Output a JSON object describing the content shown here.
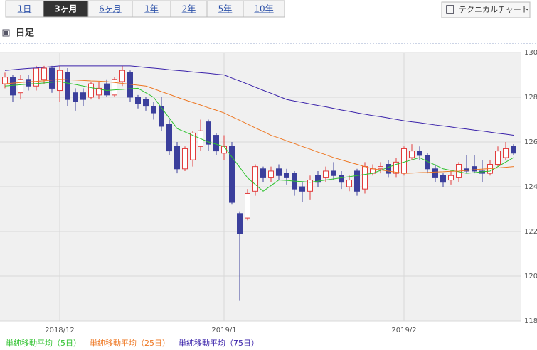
{
  "tabs": [
    "1日",
    "3ヶ月",
    "6ヶ月",
    "1年",
    "2年",
    "5年",
    "10年"
  ],
  "selected_tab": 1,
  "button": "テクニカルチャート",
  "heading": "日足",
  "chart_data": {
    "type": "candlestick",
    "categories": [
      null,
      null,
      null,
      null,
      null,
      null,
      null,
      "2018/12",
      null,
      null,
      null,
      null,
      null,
      null,
      null,
      null,
      null,
      null,
      null,
      null,
      null,
      null,
      null,
      null,
      null,
      null,
      null,
      null,
      "2019/1",
      null,
      null,
      null,
      null,
      null,
      null,
      null,
      null,
      null,
      null,
      null,
      null,
      null,
      null,
      null,
      null,
      null,
      null,
      null,
      null,
      null,
      null,
      "2019/2",
      null,
      null,
      null,
      null,
      null,
      null,
      null,
      null,
      null,
      null,
      null,
      null,
      null,
      null
    ],
    "open": [
      128.6,
      128.9,
      128.2,
      128.8,
      128.5,
      128.8,
      129.3,
      128.3,
      129.1,
      128.2,
      128.2,
      128.0,
      128.1,
      128.6,
      128.1,
      128.7,
      129.1,
      128.0,
      127.9,
      127.6,
      127.6,
      126.8,
      125.8,
      124.8,
      125.2,
      125.8,
      126.9,
      126.3,
      125.5,
      125.8,
      122.8,
      122.6,
      123.8,
      124.8,
      124.4,
      124.8,
      124.6,
      124.6,
      124.0,
      123.8,
      124.5,
      124.4,
      124.7,
      124.5,
      124.0,
      124.7,
      123.9,
      124.6,
      124.8,
      125.0,
      124.6,
      124.6,
      125.3,
      125.6,
      125.4,
      124.8,
      124.5,
      124.3,
      124.4,
      124.8,
      124.9,
      124.7,
      124.6,
      125.0,
      125.3,
      125.8
    ],
    "high": [
      129.1,
      129.0,
      129.0,
      129.0,
      129.4,
      129.4,
      129.4,
      129.4,
      129.3,
      128.4,
      128.4,
      128.7,
      128.7,
      128.8,
      128.9,
      129.4,
      129.2,
      128.1,
      128.0,
      127.8,
      128.0,
      127.0,
      126.0,
      125.8,
      126.5,
      127.0,
      127.0,
      126.4,
      126.3,
      126.0,
      122.9,
      123.9,
      125.0,
      124.9,
      124.9,
      125.0,
      124.8,
      124.7,
      124.2,
      124.5,
      124.7,
      124.9,
      125.1,
      124.7,
      124.5,
      124.8,
      125.1,
      125.0,
      125.1,
      125.2,
      125.3,
      125.8,
      125.9,
      125.8,
      125.5,
      125.0,
      124.6,
      124.7,
      125.1,
      125.4,
      125.4,
      125.2,
      125.2,
      125.8,
      126.0,
      125.9
    ],
    "low": [
      128.4,
      127.8,
      127.9,
      128.3,
      128.3,
      128.6,
      128.2,
      127.8,
      127.6,
      127.4,
      127.6,
      127.9,
      127.9,
      128.0,
      128.0,
      128.5,
      127.8,
      127.5,
      127.4,
      127.0,
      126.5,
      125.4,
      124.6,
      124.7,
      124.9,
      125.6,
      125.6,
      125.4,
      125.2,
      123.2,
      118.9,
      122.5,
      123.6,
      124.2,
      124.2,
      124.3,
      124.1,
      123.6,
      123.3,
      123.4,
      124.0,
      124.2,
      124.3,
      123.9,
      123.8,
      123.6,
      123.7,
      124.5,
      124.6,
      124.4,
      124.4,
      124.5,
      125.2,
      125.2,
      124.6,
      124.2,
      124.0,
      124.1,
      124.2,
      124.6,
      124.6,
      124.2,
      124.5,
      124.9,
      125.2,
      125.4
    ],
    "close": [
      128.9,
      128.1,
      128.8,
      128.5,
      129.3,
      129.3,
      128.4,
      129.2,
      127.9,
      127.8,
      127.9,
      128.6,
      128.4,
      128.1,
      128.8,
      129.2,
      128.0,
      127.7,
      127.6,
      127.3,
      126.7,
      125.6,
      124.8,
      125.7,
      126.4,
      126.5,
      125.9,
      125.6,
      125.8,
      123.3,
      121.9,
      123.7,
      124.9,
      124.4,
      124.7,
      124.5,
      124.4,
      123.9,
      123.8,
      124.3,
      124.2,
      124.7,
      124.5,
      124.2,
      124.3,
      123.8,
      124.9,
      124.8,
      124.9,
      124.6,
      125.1,
      125.7,
      125.6,
      125.4,
      124.8,
      124.4,
      124.2,
      124.5,
      125.0,
      124.7,
      124.7,
      124.6,
      125.0,
      125.6,
      125.7,
      125.5
    ],
    "up_color": "#e23b3b",
    "down_color": "#3b3f9c",
    "series": [
      {
        "name": "単純移動平均（5日）",
        "color": "#2fc22f",
        "values": [
          128.5,
          128.53,
          128.56,
          128.59,
          128.61,
          128.64,
          128.67,
          128.7,
          128.63,
          128.57,
          128.5,
          128.43,
          128.37,
          128.3,
          128.33,
          128.35,
          128.38,
          128.4,
          128.2,
          128.0,
          127.53,
          127.07,
          126.6,
          126.45,
          126.3,
          126.15,
          126.0,
          125.9,
          125.8,
          125.33,
          124.87,
          124.4,
          124.1,
          123.8,
          124.05,
          124.3,
          124.28,
          124.25,
          124.23,
          124.2,
          124.25,
          124.3,
          124.35,
          124.4,
          124.45,
          124.5,
          124.55,
          124.6,
          124.73,
          124.87,
          125.0,
          125.1,
          125.2,
          125.3,
          125.13,
          124.97,
          124.8,
          124.73,
          124.67,
          124.6,
          124.63,
          124.67,
          124.7,
          124.9,
          125.1,
          125.3
        ]
      },
      {
        "name": "単純移動平均（25日）",
        "color": "#ee7722",
        "values": [
          128.6,
          128.63,
          128.66,
          128.69,
          128.71,
          128.74,
          128.77,
          128.8,
          128.78,
          128.77,
          128.75,
          128.73,
          128.72,
          128.7,
          128.66,
          128.62,
          128.58,
          128.54,
          128.5,
          128.38,
          128.25,
          128.13,
          128.0,
          127.88,
          127.77,
          127.65,
          127.53,
          127.42,
          127.3,
          127.13,
          126.97,
          126.8,
          126.63,
          126.47,
          126.3,
          126.18,
          126.05,
          125.93,
          125.8,
          125.68,
          125.55,
          125.43,
          125.3,
          125.2,
          125.1,
          125.0,
          124.9,
          124.8,
          124.75,
          124.7,
          124.65,
          124.6,
          124.61,
          124.63,
          124.64,
          124.66,
          124.67,
          124.69,
          124.7,
          124.73,
          124.76,
          124.79,
          124.81,
          124.84,
          124.87,
          124.9
        ]
      },
      {
        "name": "単純移動平均（75日）",
        "color": "#3a22aa",
        "values": [
          129.2,
          129.23,
          129.26,
          129.29,
          129.31,
          129.34,
          129.37,
          129.4,
          129.4,
          129.4,
          129.4,
          129.4,
          129.4,
          129.4,
          129.4,
          129.4,
          129.4,
          129.37,
          129.33,
          129.3,
          129.27,
          129.23,
          129.2,
          129.17,
          129.13,
          129.1,
          129.07,
          129.03,
          129.0,
          128.86,
          128.73,
          128.59,
          128.45,
          128.31,
          128.18,
          128.04,
          127.9,
          127.83,
          127.77,
          127.7,
          127.63,
          127.57,
          127.5,
          127.43,
          127.37,
          127.3,
          127.24,
          127.18,
          127.13,
          127.07,
          127.01,
          126.95,
          126.9,
          126.86,
          126.81,
          126.76,
          126.72,
          126.67,
          126.62,
          126.58,
          126.53,
          126.49,
          126.44,
          126.39,
          126.35,
          126.3
        ]
      }
    ],
    "ylim": [
      118,
      130
    ],
    "yticks": [
      118,
      120,
      122,
      124,
      126,
      128,
      130
    ],
    "grid": true
  }
}
